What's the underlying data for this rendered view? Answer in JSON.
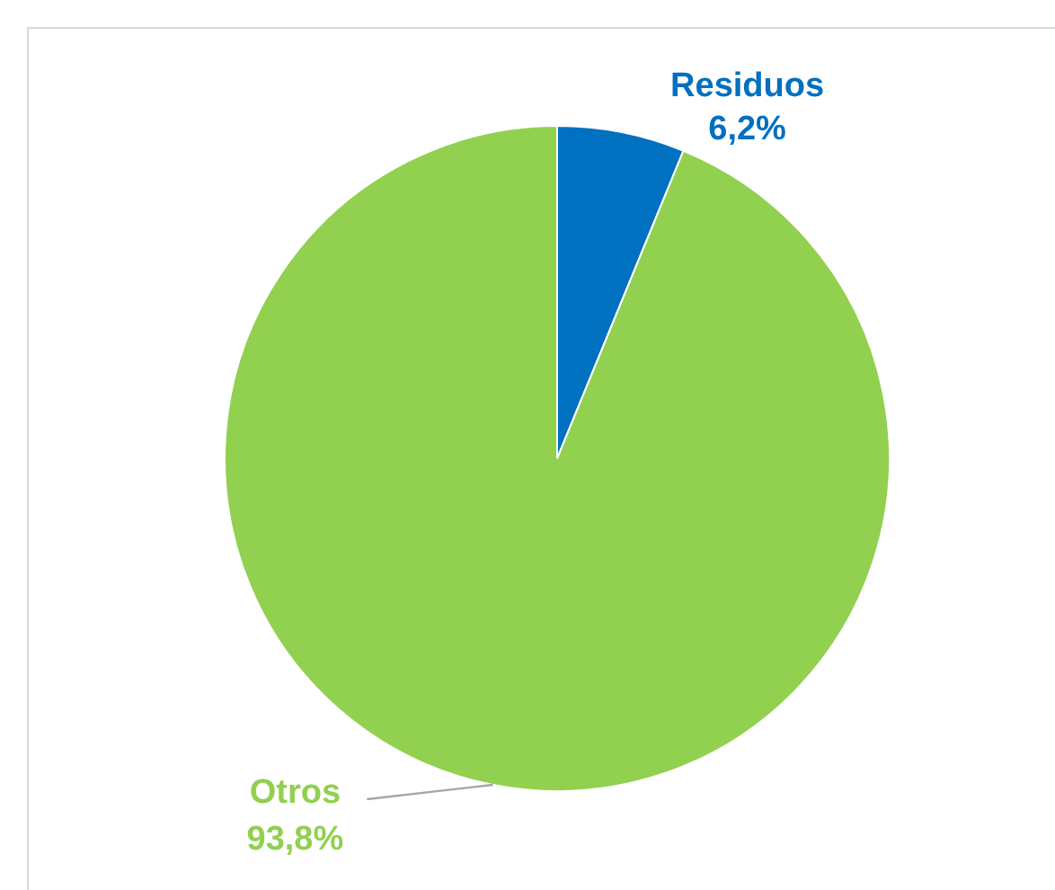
{
  "chart_data": {
    "type": "pie",
    "categories": [
      "Residuos",
      "Otros"
    ],
    "values": [
      6.2,
      93.8
    ],
    "colors": [
      "#0070c0",
      "#92d050"
    ],
    "value_labels": [
      "6,2%",
      "93,8%"
    ]
  }
}
